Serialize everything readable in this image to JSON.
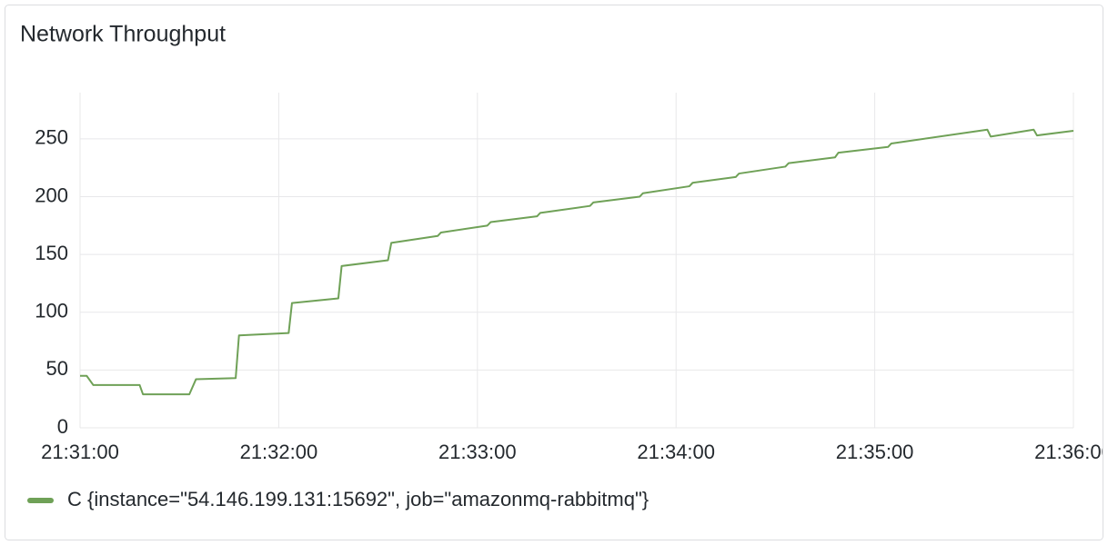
{
  "chart_data": {
    "type": "line",
    "title": "Network Throughput",
    "x": [
      "21:31:00",
      "21:31:02",
      "21:31:04",
      "21:31:18",
      "21:31:19",
      "21:31:33",
      "21:31:35",
      "21:31:47",
      "21:31:48",
      "21:32:03",
      "21:32:04",
      "21:32:18",
      "21:32:19",
      "21:32:33",
      "21:32:34",
      "21:32:48",
      "21:32:49",
      "21:33:03",
      "21:33:04",
      "21:33:18",
      "21:33:19",
      "21:33:34",
      "21:33:35",
      "21:33:49",
      "21:33:50",
      "21:34:04",
      "21:34:05",
      "21:34:18",
      "21:34:19",
      "21:34:33",
      "21:34:34",
      "21:34:48",
      "21:34:49",
      "21:35:04",
      "21:35:05",
      "21:35:34",
      "21:35:35",
      "21:35:48",
      "21:35:49",
      "21:36:00"
    ],
    "series": [
      {
        "name": "C {instance=\"54.146.199.131:15692\", job=\"amazonmq-rabbitmq\"}",
        "color": "#6fa157",
        "values": [
          45,
          45,
          37,
          37,
          29,
          29,
          42,
          43,
          80,
          82,
          108,
          112,
          140,
          145,
          160,
          166,
          169,
          175,
          178,
          183,
          186,
          192,
          195,
          200,
          203,
          209,
          212,
          217,
          220,
          226,
          229,
          234,
          238,
          243,
          246,
          258,
          252,
          258,
          253,
          257
        ]
      }
    ],
    "xlim": [
      "21:31:00",
      "21:36:00"
    ],
    "xticks": [
      "21:31:00",
      "21:32:00",
      "21:33:00",
      "21:34:00",
      "21:35:00",
      "21:36:00"
    ],
    "ylim": [
      0,
      290
    ],
    "yticks": [
      0,
      50,
      100,
      150,
      200,
      250
    ],
    "grid": true
  }
}
